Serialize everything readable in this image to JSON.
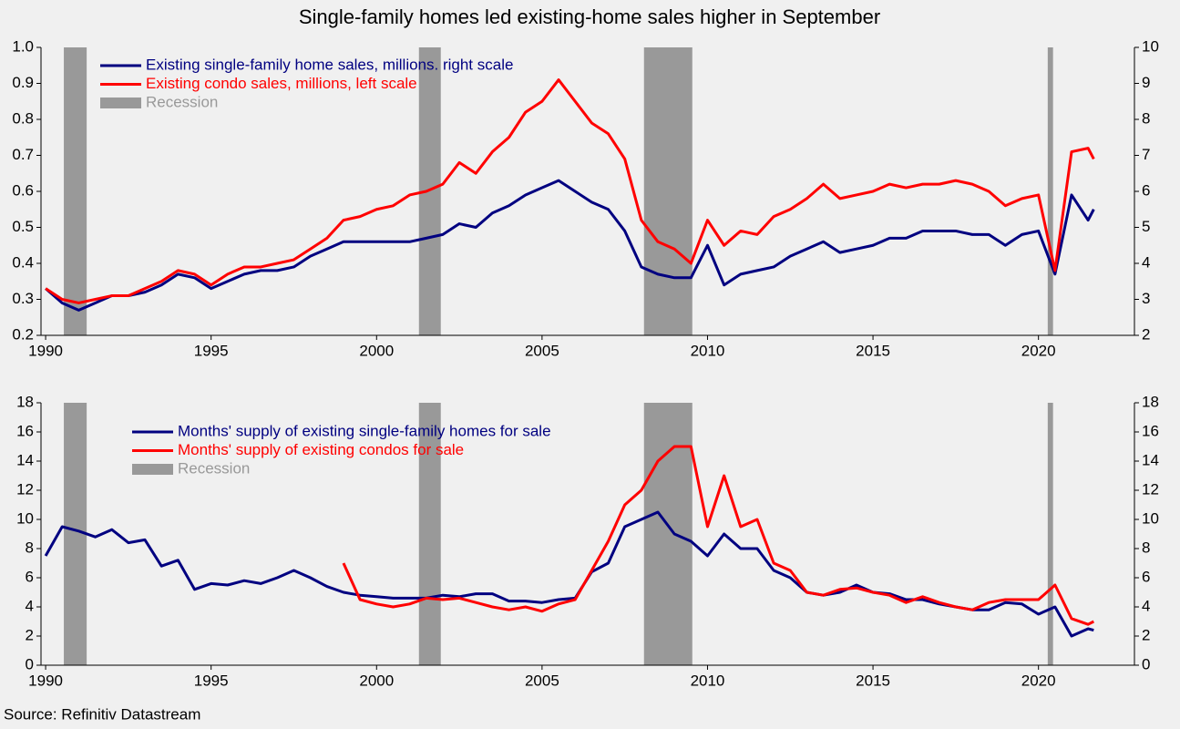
{
  "title": "Single-family homes led existing-home sales higher in September",
  "source": "Source: Refinitiv Datastream",
  "chart_data": [
    {
      "type": "line",
      "x": [
        1990,
        1990.5,
        1991,
        1991.5,
        1992,
        1992.5,
        1993,
        1993.5,
        1994,
        1994.5,
        1995,
        1995.5,
        1996,
        1996.5,
        1997,
        1997.5,
        1998,
        1998.5,
        1999,
        1999.5,
        2000,
        2000.5,
        2001,
        2001.5,
        2002,
        2002.5,
        2003,
        2003.5,
        2004,
        2004.5,
        2005,
        2005.5,
        2006,
        2006.5,
        2007,
        2007.5,
        2008,
        2008.5,
        2009,
        2009.5,
        2010,
        2010.5,
        2011,
        2011.5,
        2012,
        2012.5,
        2013,
        2013.5,
        2014,
        2014.5,
        2015,
        2015.5,
        2016,
        2016.5,
        2017,
        2017.5,
        2018,
        2018.5,
        2019,
        2019.5,
        2020,
        2020.5,
        2021,
        2021.5,
        2021.67
      ],
      "series": [
        {
          "name": "Existing single-family home sales, millions. right scale",
          "color": "#000080",
          "axis": "y2",
          "values": [
            3.3,
            2.9,
            2.7,
            2.9,
            3.1,
            3.1,
            3.2,
            3.4,
            3.7,
            3.6,
            3.3,
            3.5,
            3.7,
            3.8,
            3.8,
            3.9,
            4.2,
            4.4,
            4.6,
            4.6,
            4.6,
            4.6,
            4.6,
            4.7,
            4.8,
            5.1,
            5.0,
            5.4,
            5.6,
            5.9,
            6.1,
            6.3,
            6.0,
            5.7,
            5.5,
            4.9,
            3.9,
            3.7,
            3.6,
            3.6,
            4.5,
            3.4,
            3.7,
            3.8,
            3.9,
            4.2,
            4.4,
            4.6,
            4.3,
            4.4,
            4.5,
            4.7,
            4.7,
            4.9,
            4.9,
            4.9,
            4.8,
            4.8,
            4.5,
            4.8,
            4.9,
            3.7,
            5.9,
            5.2,
            5.5
          ]
        },
        {
          "name": "Existing condo sales, millions, left scale",
          "color": "#ff0000",
          "values": [
            0.33,
            0.3,
            0.29,
            0.3,
            0.31,
            0.31,
            0.33,
            0.35,
            0.38,
            0.37,
            0.34,
            0.37,
            0.39,
            0.39,
            0.4,
            0.41,
            0.44,
            0.47,
            0.52,
            0.53,
            0.55,
            0.56,
            0.59,
            0.6,
            0.62,
            0.68,
            0.65,
            0.71,
            0.75,
            0.82,
            0.85,
            0.91,
            0.85,
            0.79,
            0.76,
            0.69,
            0.52,
            0.46,
            0.44,
            0.4,
            0.52,
            0.45,
            0.49,
            0.48,
            0.53,
            0.55,
            0.58,
            0.62,
            0.58,
            0.59,
            0.6,
            0.62,
            0.61,
            0.62,
            0.62,
            0.63,
            0.62,
            0.6,
            0.56,
            0.58,
            0.59,
            0.38,
            0.71,
            0.72,
            0.69
          ]
        }
      ],
      "recession": {
        "name": "Recession",
        "color": "#999999",
        "periods": [
          [
            1990.55,
            1991.24
          ],
          [
            2001.28,
            2001.94
          ],
          [
            2008.08,
            2009.54
          ],
          [
            2020.28,
            2020.44
          ]
        ]
      },
      "xlim": [
        1989.86,
        2022.9
      ],
      "xticks": [
        1990,
        1995,
        2000,
        2005,
        2010,
        2015,
        2020
      ],
      "ylim": [
        0.2,
        1.0
      ],
      "yticks": [
        0.2,
        0.3,
        0.4,
        0.5,
        0.6,
        0.7,
        0.8,
        0.9,
        {
          "value": 1,
          "label": "1.0"
        }
      ],
      "y2lim": [
        2,
        10
      ],
      "y2ticks": [
        2,
        3,
        4,
        5,
        6,
        7,
        8,
        9,
        10
      ]
    },
    {
      "type": "line",
      "x": [
        1990,
        1990.5,
        1991,
        1991.5,
        1992,
        1992.5,
        1993,
        1993.5,
        1994,
        1994.5,
        1995,
        1995.5,
        1996,
        1996.5,
        1997,
        1997.5,
        1998,
        1998.5,
        1999,
        1999.5,
        2000,
        2000.5,
        2001,
        2001.5,
        2002,
        2002.5,
        2003,
        2003.5,
        2004,
        2004.5,
        2005,
        2005.5,
        2006,
        2006.5,
        2007,
        2007.5,
        2008,
        2008.5,
        2009,
        2009.5,
        2010,
        2010.5,
        2011,
        2011.5,
        2012,
        2012.5,
        2013,
        2013.5,
        2014,
        2014.5,
        2015,
        2015.5,
        2016,
        2016.5,
        2017,
        2017.5,
        2018,
        2018.5,
        2019,
        2019.5,
        2020,
        2020.5,
        2021,
        2021.5,
        2021.67
      ],
      "series": [
        {
          "name": "Months' supply of existing single-family homes for sale",
          "color": "#000080",
          "values": [
            7.5,
            9.5,
            9.2,
            8.8,
            9.3,
            8.4,
            8.6,
            6.8,
            7.2,
            5.2,
            5.6,
            5.5,
            5.8,
            5.6,
            6.0,
            6.5,
            6.0,
            5.4,
            5.0,
            4.8,
            4.7,
            4.6,
            4.6,
            4.6,
            4.8,
            4.7,
            4.9,
            4.9,
            4.4,
            4.4,
            4.3,
            4.5,
            4.6,
            6.4,
            7.0,
            9.5,
            10.0,
            10.5,
            9.0,
            8.5,
            7.5,
            9.0,
            8.0,
            8.0,
            6.5,
            6.0,
            5.0,
            4.8,
            5.0,
            5.5,
            5.0,
            4.9,
            4.5,
            4.5,
            4.2,
            4.0,
            3.8,
            3.8,
            4.3,
            4.2,
            3.5,
            4.0,
            2.0,
            2.5,
            2.4
          ]
        },
        {
          "name": "Months' supply of existing condos for sale",
          "color": "#ff0000",
          "values": [
            null,
            null,
            null,
            null,
            null,
            null,
            null,
            null,
            null,
            null,
            null,
            null,
            null,
            null,
            null,
            null,
            null,
            null,
            7.0,
            4.5,
            4.2,
            4.0,
            4.2,
            4.6,
            4.5,
            4.6,
            4.3,
            4.0,
            3.8,
            4.0,
            3.7,
            4.2,
            4.5,
            6.5,
            8.5,
            11,
            12,
            14,
            15,
            15,
            9.5,
            13,
            9.5,
            10.0,
            7.0,
            6.5,
            5.0,
            4.8,
            5.2,
            5.3,
            5.0,
            4.8,
            4.3,
            4.7,
            4.3,
            4.0,
            3.8,
            4.3,
            4.5,
            4.5,
            4.5,
            5.5,
            3.2,
            2.8,
            3.0
          ]
        }
      ],
      "recession": {
        "name": "Recession",
        "color": "#999999",
        "periods": [
          [
            1990.55,
            1991.24
          ],
          [
            2001.28,
            2001.94
          ],
          [
            2008.08,
            2009.54
          ],
          [
            2020.28,
            2020.44
          ]
        ]
      },
      "xlim": [
        1989.86,
        2022.9
      ],
      "xticks": [
        1990,
        1995,
        2000,
        2005,
        2010,
        2015,
        2020
      ],
      "ylim": [
        0,
        18
      ],
      "yticks": [
        0,
        2,
        4,
        6,
        8,
        10,
        12,
        14,
        16,
        18
      ],
      "y2lim": [
        0,
        18
      ],
      "y2ticks": [
        0,
        2,
        4,
        6,
        8,
        10,
        12,
        14,
        16,
        18
      ]
    }
  ]
}
